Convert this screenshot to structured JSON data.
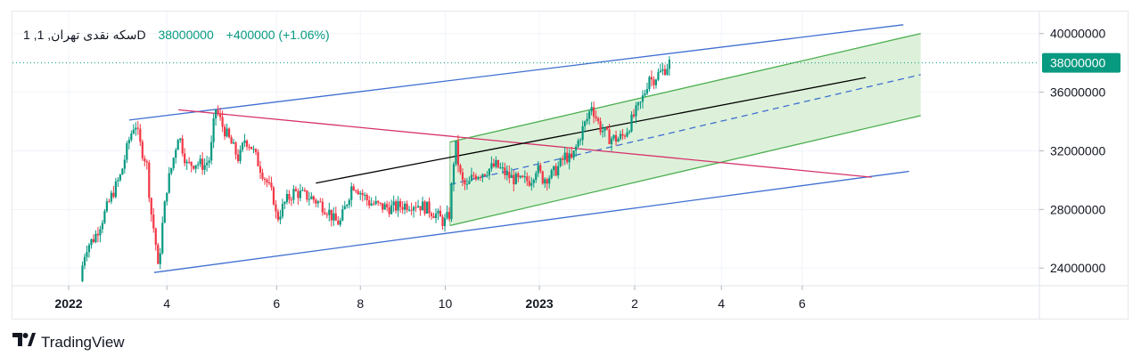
{
  "legend": {
    "symbol": "1 ,سکه نقدی تهران, 1D",
    "price": "38000000",
    "change": "+400000 (+1.06%)"
  },
  "brand": {
    "name": "TradingView"
  },
  "colors": {
    "up": "#089981",
    "down": "#f23645",
    "channel": "#3f6fd1",
    "green": "#4caf50",
    "greenFill": "#d9f0d6",
    "pink": "#d6336c",
    "black": "#000000"
  },
  "chart_data": {
    "type": "candlestick",
    "ylim": [
      22800000,
      41500000
    ],
    "y_ticks": [
      "24000000",
      "28000000",
      "32000000",
      "36000000",
      "40000000"
    ],
    "x_ticks": [
      {
        "label": "2022",
        "t": 0.0,
        "bold": true
      },
      {
        "label": "4",
        "t": 1.7
      },
      {
        "label": "6",
        "t": 3.6
      },
      {
        "label": "8",
        "t": 5.05
      },
      {
        "label": "10",
        "t": 6.52
      },
      {
        "label": "2023",
        "t": 8.15,
        "bold": true
      },
      {
        "label": "2",
        "t": 9.8
      },
      {
        "label": "4",
        "t": 11.3
      },
      {
        "label": "6",
        "t": 12.7
      }
    ],
    "last_price": {
      "value": 38000000,
      "label": "38000000"
    },
    "price_path": [
      [
        0.2,
        23100000
      ],
      [
        0.25,
        24500000
      ],
      [
        0.3,
        25400000
      ],
      [
        0.45,
        26100000
      ],
      [
        0.6,
        27500000
      ],
      [
        0.75,
        29000000
      ],
      [
        0.9,
        30300000
      ],
      [
        1.05,
        32800000
      ],
      [
        1.15,
        34000000
      ],
      [
        1.25,
        32200000
      ],
      [
        1.35,
        31200000
      ],
      [
        1.42,
        28000000
      ],
      [
        1.5,
        26000000
      ],
      [
        1.55,
        23800000
      ],
      [
        1.62,
        26800000
      ],
      [
        1.7,
        29500000
      ],
      [
        1.8,
        31200000
      ],
      [
        1.9,
        33200000
      ],
      [
        2.05,
        31000000
      ],
      [
        2.2,
        31200000
      ],
      [
        2.35,
        31000000
      ],
      [
        2.45,
        31500000
      ],
      [
        2.5,
        33500000
      ],
      [
        2.55,
        34900000
      ],
      [
        2.65,
        33800000
      ],
      [
        2.8,
        32600000
      ],
      [
        2.95,
        31400000
      ],
      [
        3.05,
        32800000
      ],
      [
        3.15,
        32400000
      ],
      [
        3.3,
        31000000
      ],
      [
        3.45,
        29700000
      ],
      [
        3.55,
        28700000
      ],
      [
        3.6,
        27300000
      ],
      [
        3.75,
        28500000
      ],
      [
        3.9,
        29200000
      ],
      [
        4.05,
        29000000
      ],
      [
        4.2,
        28800000
      ],
      [
        4.35,
        28400000
      ],
      [
        4.5,
        27900000
      ],
      [
        4.6,
        27200000
      ],
      [
        4.7,
        27100000
      ],
      [
        4.8,
        28300000
      ],
      [
        4.9,
        29600000
      ],
      [
        4.95,
        29700000
      ],
      [
        5.05,
        29200000
      ],
      [
        5.2,
        28500000
      ],
      [
        5.4,
        28200000
      ],
      [
        5.6,
        28100000
      ],
      [
        5.8,
        28300000
      ],
      [
        6.0,
        28400000
      ],
      [
        6.2,
        28100000
      ],
      [
        6.35,
        27700000
      ],
      [
        6.45,
        27300000
      ],
      [
        6.5,
        27100000
      ],
      [
        6.6,
        27700000
      ],
      [
        6.65,
        30800000
      ],
      [
        6.7,
        32400000
      ],
      [
        6.75,
        31000000
      ],
      [
        6.8,
        29900000
      ],
      [
        6.9,
        29500000
      ],
      [
        7.0,
        30300000
      ],
      [
        7.2,
        30600000
      ],
      [
        7.4,
        31000000
      ],
      [
        7.6,
        30300000
      ],
      [
        7.8,
        29900000
      ],
      [
        8.0,
        30000000
      ],
      [
        8.1,
        30900000
      ],
      [
        8.2,
        30100000
      ],
      [
        8.35,
        30300000
      ],
      [
        8.5,
        31000000
      ],
      [
        8.6,
        31700000
      ],
      [
        8.7,
        31300000
      ],
      [
        8.8,
        32400000
      ],
      [
        8.9,
        33500000
      ],
      [
        9.0,
        34400000
      ],
      [
        9.05,
        35200000
      ],
      [
        9.1,
        34600000
      ],
      [
        9.2,
        33600000
      ],
      [
        9.35,
        32900000
      ],
      [
        9.5,
        32800000
      ],
      [
        9.6,
        33000000
      ],
      [
        9.7,
        33700000
      ],
      [
        9.8,
        34500000
      ],
      [
        9.9,
        35200000
      ],
      [
        10.0,
        36300000
      ],
      [
        10.05,
        37200000
      ],
      [
        10.1,
        36800000
      ],
      [
        10.2,
        37200000
      ],
      [
        10.3,
        37500000
      ],
      [
        10.4,
        38000000
      ]
    ]
  }
}
